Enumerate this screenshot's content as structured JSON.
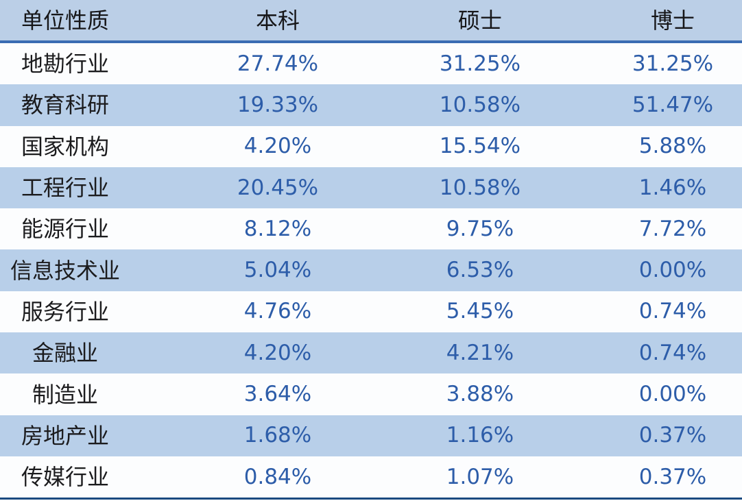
{
  "table": {
    "header": {
      "col1": "单位性质",
      "col2": "本科",
      "col3": "硕士",
      "col4": "博士"
    },
    "rows": [
      {
        "label": "地勘行业",
        "bachelor": "27.74%",
        "master": "31.25%",
        "doctor": "31.25%"
      },
      {
        "label": "教育科研",
        "bachelor": "19.33%",
        "master": "10.58%",
        "doctor": "51.47%"
      },
      {
        "label": "国家机构",
        "bachelor": "4.20%",
        "master": "15.54%",
        "doctor": "5.88%"
      },
      {
        "label": "工程行业",
        "bachelor": "20.45%",
        "master": "10.58%",
        "doctor": "1.46%"
      },
      {
        "label": "能源行业",
        "bachelor": "8.12%",
        "master": "9.75%",
        "doctor": "7.72%"
      },
      {
        "label": "信息技术业",
        "bachelor": "5.04%",
        "master": "6.53%",
        "doctor": "0.00%"
      },
      {
        "label": "服务行业",
        "bachelor": "4.76%",
        "master": "5.45%",
        "doctor": "0.74%"
      },
      {
        "label": "金融业",
        "bachelor": "4.20%",
        "master": "4.21%",
        "doctor": "0.74%"
      },
      {
        "label": "制造业",
        "bachelor": "3.64%",
        "master": "3.88%",
        "doctor": "0.00%"
      },
      {
        "label": "房地产业",
        "bachelor": "1.68%",
        "master": "1.16%",
        "doctor": "0.37%"
      },
      {
        "label": "传媒行业",
        "bachelor": "0.84%",
        "master": "1.07%",
        "doctor": "0.37%"
      }
    ]
  },
  "colors": {
    "header_bg": "#bbcfe7",
    "row_alt_bg": "#b8cfe9",
    "row_bg": "#fcfdfe",
    "value_text": "#2d5da9",
    "label_text": "#1b1b1d",
    "header_rule": "#3a6cb3",
    "bottom_rule": "#1a4a80"
  },
  "chart_data": {
    "type": "table",
    "columns": [
      "单位性质",
      "本科",
      "硕士",
      "博士"
    ],
    "categories": [
      "地勘行业",
      "教育科研",
      "国家机构",
      "工程行业",
      "能源行业",
      "信息技术业",
      "服务行业",
      "金融业",
      "制造业",
      "房地产业",
      "传媒行业"
    ],
    "series": [
      {
        "name": "本科",
        "values": [
          27.74,
          19.33,
          4.2,
          20.45,
          8.12,
          5.04,
          4.76,
          4.2,
          3.64,
          1.68,
          0.84
        ]
      },
      {
        "name": "硕士",
        "values": [
          31.25,
          10.58,
          15.54,
          10.58,
          9.75,
          6.53,
          5.45,
          4.21,
          3.88,
          1.16,
          1.07
        ]
      },
      {
        "name": "博士",
        "values": [
          31.25,
          51.47,
          5.88,
          1.46,
          7.72,
          0.0,
          0.74,
          0.74,
          0.0,
          0.37,
          0.37
        ]
      }
    ],
    "layout": {
      "grid": false,
      "legend_position": "none",
      "value_format": "percent"
    }
  }
}
